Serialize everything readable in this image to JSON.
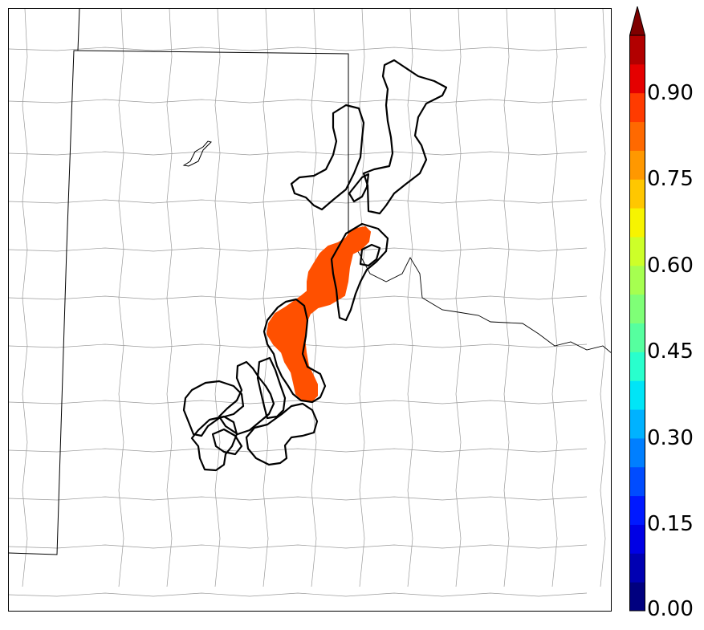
{
  "colorbar": {
    "tick_labels": [
      "0.00",
      "0.15",
      "0.30",
      "0.45",
      "0.60",
      "0.75",
      "0.90"
    ],
    "tick_values": [
      0.0,
      0.15,
      0.3,
      0.45,
      0.6,
      0.75,
      0.9
    ],
    "range": [
      0.0,
      1.0
    ],
    "extend": "max",
    "colors": [
      "#00007f",
      "#0000b2",
      "#0000e5",
      "#0019ff",
      "#004cff",
      "#007fff",
      "#00b2ff",
      "#00e5f7",
      "#29ffcd",
      "#56ff9f",
      "#7fff77",
      "#a6ff50",
      "#cdff29",
      "#f7f400",
      "#ffc700",
      "#ff9800",
      "#ff6900",
      "#ff3b00",
      "#e50000",
      "#b20000"
    ],
    "extend_color": "#7f0000"
  },
  "map": {
    "filled_field_color": "#ff5000",
    "contour_color": "#000000",
    "county_line_color": "#9a9a9a"
  }
}
